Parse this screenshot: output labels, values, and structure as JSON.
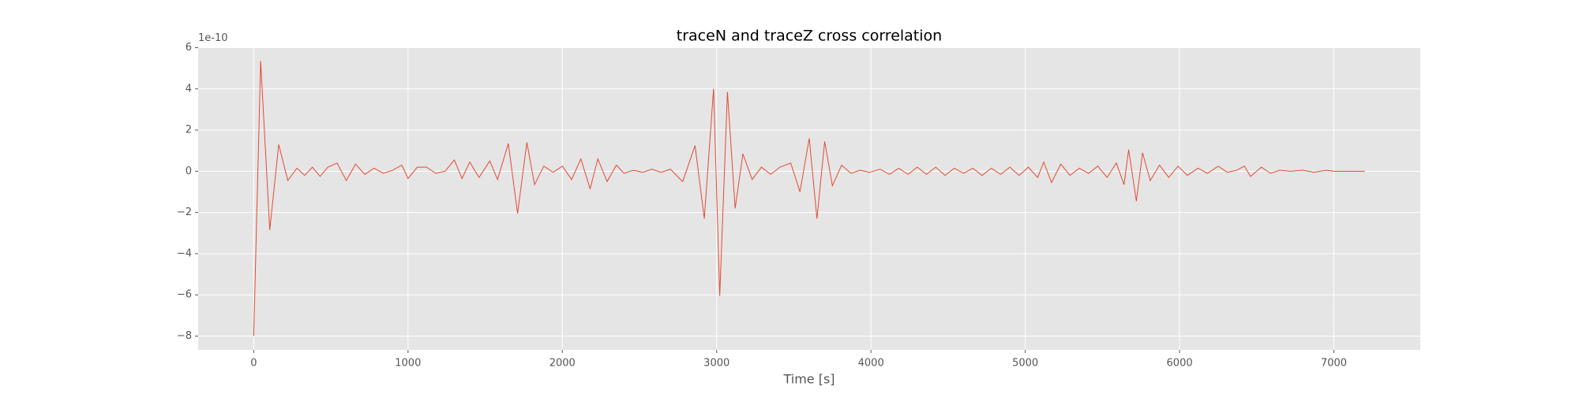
{
  "chart_data": {
    "type": "line",
    "title": "traceN and traceZ cross correlation",
    "xlabel": "Time [s]",
    "offset_label": "1e-10",
    "color": "#E24A33",
    "grid": true,
    "x": [
      0,
      45,
      104,
      162,
      221,
      280,
      330,
      380,
      430,
      480,
      540,
      600,
      660,
      720,
      780,
      840,
      900,
      960,
      1000,
      1060,
      1120,
      1180,
      1240,
      1300,
      1350,
      1400,
      1460,
      1530,
      1580,
      1650,
      1710,
      1770,
      1820,
      1880,
      1940,
      2000,
      2060,
      2120,
      2180,
      2230,
      2290,
      2350,
      2400,
      2460,
      2520,
      2580,
      2640,
      2700,
      2780,
      2860,
      2920,
      2980,
      3020,
      3070,
      3120,
      3170,
      3230,
      3290,
      3350,
      3410,
      3480,
      3540,
      3600,
      3650,
      3700,
      3750,
      3810,
      3870,
      3930,
      3990,
      4060,
      4120,
      4180,
      4240,
      4300,
      4360,
      4420,
      4480,
      4540,
      4600,
      4660,
      4720,
      4780,
      4840,
      4900,
      4960,
      5020,
      5080,
      5120,
      5170,
      5230,
      5290,
      5350,
      5410,
      5470,
      5530,
      5590,
      5640,
      5670,
      5720,
      5760,
      5810,
      5870,
      5930,
      5990,
      6050,
      6120,
      6180,
      6250,
      6310,
      6370,
      6420,
      6460,
      6530,
      6590,
      6650,
      6720,
      6800,
      6870,
      6950,
      7000,
      7200
    ],
    "values": [
      -8,
      5.35,
      -2.85,
      1.3,
      -0.45,
      0.15,
      -0.2,
      0.2,
      -0.25,
      0.2,
      0.4,
      -0.45,
      0.35,
      -0.15,
      0.15,
      -0.1,
      0.05,
      0.3,
      -0.35,
      0.2,
      0.2,
      -0.1,
      0.0,
      0.55,
      -0.35,
      0.45,
      -0.3,
      0.5,
      -0.4,
      1.35,
      -2.05,
      1.4,
      -0.65,
      0.25,
      -0.05,
      0.25,
      -0.4,
      0.6,
      -0.85,
      0.6,
      -0.5,
      0.3,
      -0.1,
      0.05,
      -0.05,
      0.1,
      -0.05,
      0.1,
      -0.5,
      1.25,
      -2.3,
      4.0,
      -6.05,
      3.85,
      -1.8,
      0.85,
      -0.4,
      0.2,
      -0.15,
      0.2,
      0.4,
      -1.0,
      1.6,
      -2.3,
      1.45,
      -0.7,
      0.3,
      -0.1,
      0.05,
      -0.05,
      0.1,
      -0.15,
      0.15,
      -0.15,
      0.2,
      -0.15,
      0.2,
      -0.2,
      0.15,
      -0.1,
      0.15,
      -0.2,
      0.15,
      -0.15,
      0.2,
      -0.2,
      0.2,
      -0.3,
      0.45,
      -0.55,
      0.35,
      -0.2,
      0.15,
      -0.1,
      0.25,
      -0.3,
      0.4,
      -0.65,
      1.05,
      -1.45,
      0.9,
      -0.45,
      0.3,
      -0.3,
      0.25,
      -0.2,
      0.15,
      -0.1,
      0.25,
      -0.05,
      0.05,
      0.25,
      -0.25,
      0.2,
      -0.1,
      0.05,
      0.0,
      0.05,
      -0.05,
      0.05,
      0.0,
      0.0
    ],
    "xlim": [
      -360,
      7560
    ],
    "xticks": [
      0,
      1000,
      2000,
      3000,
      4000,
      5000,
      6000,
      7000
    ],
    "ylim": [
      -8.67,
      6.02
    ],
    "yticks": [
      {
        "value": -8,
        "label": "−8"
      },
      {
        "value": -6,
        "label": "−6"
      },
      {
        "value": -4,
        "label": "−4"
      },
      {
        "value": -2,
        "label": "−2"
      },
      0,
      2,
      4,
      6
    ]
  }
}
